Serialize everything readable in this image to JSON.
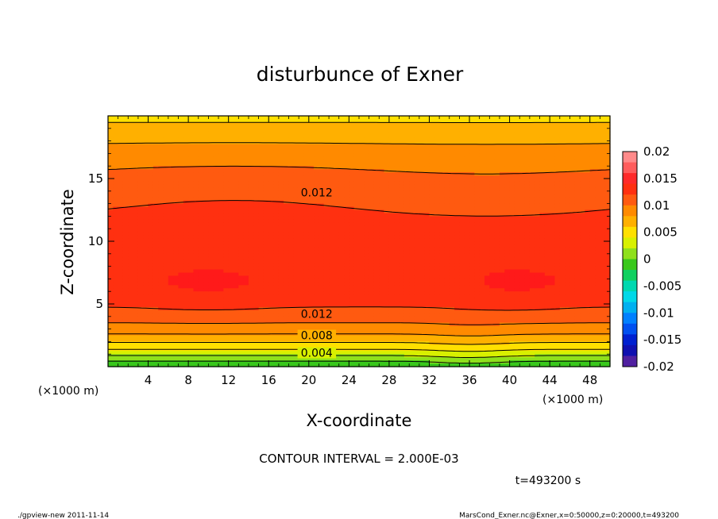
{
  "chart_data": {
    "type": "heatmap",
    "title": "disturbunce of Exner",
    "xlabel": "X-coordinate",
    "ylabel": "Z-coordinate",
    "x_unit_left": "(×1000 m)",
    "x_unit_right": "(×1000 m)",
    "xlim": [
      0,
      50
    ],
    "ylim": [
      0,
      20
    ],
    "x_ticks": [
      4,
      8,
      12,
      16,
      20,
      24,
      28,
      32,
      36,
      40,
      44,
      48
    ],
    "y_ticks": [
      5,
      10,
      15
    ],
    "colorbar": {
      "ticks": [
        "0.02",
        "0.015",
        "0.01",
        "0.005",
        "0",
        "-0.005",
        "-0.01",
        "-0.015",
        "-0.02"
      ],
      "range": [
        -0.02,
        0.02
      ]
    },
    "contour_interval_text": "CONTOUR INTERVAL = 2.000E-03",
    "contour_labels": [
      {
        "text": "0.012",
        "x": 20,
        "z": 13.9
      },
      {
        "text": "0.012",
        "x": 20,
        "z": 4.2
      },
      {
        "text": "0.008",
        "x": 20,
        "z": 2.5
      },
      {
        "text": "0.004",
        "x": 20,
        "z": 1.1
      }
    ],
    "time_label": "t=493200 s",
    "footer_left": "./gpview-new   2011-11-14",
    "footer_right": "MarsCond_Exner.nc@Exner,x=0:50000,z=0:20000,t=493200",
    "colors": {
      "lvl_0.000": "#39c81c",
      "lvl_0.002": "#8fe01c",
      "lvl_0.004": "#d8f000",
      "lvl_0.006": "#ffe000",
      "lvl_0.008": "#ffb000",
      "lvl_0.010": "#ff8a00",
      "lvl_0.012": "#ff5a10",
      "lvl_0.014": "#ff3010",
      "lvl_0.016": "#ff1a1a"
    }
  }
}
